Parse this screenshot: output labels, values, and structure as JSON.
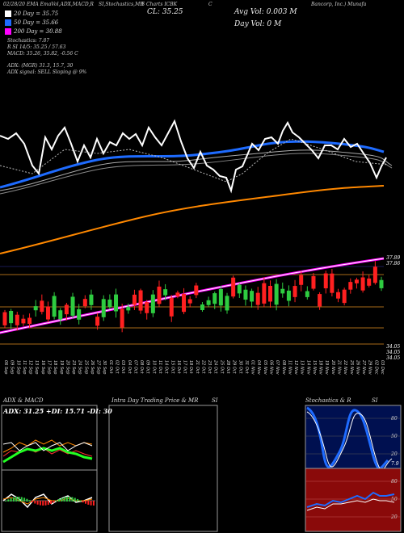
{
  "header": {
    "top_left": "02/28/20 EMA EmaVol,ADX,MACD,R",
    "top_mid": "SI,Stochastics,MR",
    "top_mid2": "S Charts ICBK",
    "top_right_code": "C",
    "top_company": "Bancorp, Inc.) Munafa",
    "top_site": "Munafa.com"
  },
  "price_label": "CL: 35.25",
  "avg_vol": "Avg Vol: 0.003  M",
  "day_vol": "Day Vol: 0  M",
  "legend": [
    {
      "label": "20  Day = 35.75",
      "color": "#ffffff"
    },
    {
      "label": "50  Day = 35.66",
      "color": "#1e6bff"
    },
    {
      "label": "200  Day = 30.88",
      "color": "#ff00ff"
    }
  ],
  "indicators": {
    "line1": "Stochastics: 7.87",
    "line2": "R                                   SI 14/5: 35.25 / 57.63",
    "line3": "MACD: 35.26, 35.82, -0.56  C",
    "line4": "ADX:                                    (MGR) 31.3,  15.7,  30",
    "line5": "ADX  signal: SELL  Sloping @ 9%"
  },
  "price_axis_labels": [
    "37.89",
    "37.86",
    "34.05",
    "34.05",
    "34.05"
  ],
  "chart_data": {
    "type": "candlestick",
    "title": "",
    "x_dates": [
      "06 Sep",
      "09 Sep",
      "10 Sep",
      "11 Sep",
      "12 Sep",
      "13 Sep",
      "16 Sep",
      "17 Sep",
      "18 Sep",
      "19 Sep",
      "20 Sep",
      "23 Sep",
      "24 Sep",
      "25 Sep",
      "26 Sep",
      "27 Sep",
      "30 Sep",
      "01 Oct",
      "02 Oct",
      "03 Oct",
      "04 Oct",
      "07 Oct",
      "08 Oct",
      "09 Oct",
      "10 Oct",
      "11 Oct",
      "14 Oct",
      "15 Oct",
      "16 Oct",
      "17 Oct",
      "18 Oct",
      "21 Oct",
      "22 Oct",
      "23 Oct",
      "24 Oct",
      "25 Oct",
      "28 Oct",
      "29 Oct",
      "30 Oct",
      "31 Oct",
      "01 Nov",
      "04 Nov",
      "05 Nov",
      "06 Nov",
      "07 Nov",
      "08 Nov",
      "11 Nov",
      "12 Nov",
      "13 Nov",
      "14 Nov",
      "15 Nov",
      "18 Nov",
      "19 Nov",
      "20 Nov",
      "21 Nov",
      "22 Nov",
      "25 Nov",
      "26 Nov",
      "27 Nov",
      "29 Nov",
      "02 Dec",
      "03 Dec"
    ],
    "candles_direction": [
      "red",
      "green",
      "red",
      "red",
      "red",
      "green",
      "red",
      "red",
      "green",
      "green",
      "red",
      "green",
      "green",
      "red",
      "green",
      "red",
      "green",
      "green",
      "green",
      "red",
      "green",
      "red",
      "red",
      "red",
      "green",
      "red",
      "green",
      "red",
      "red",
      "red",
      "red",
      "red",
      "green",
      "green",
      "green",
      "green",
      "green",
      "red",
      "green",
      "green",
      "green",
      "red",
      "red",
      "red",
      "green",
      "green",
      "green",
      "red",
      "red",
      "green",
      "red",
      "red",
      "red",
      "red",
      "red",
      "red",
      "red",
      "red",
      "red",
      "red",
      "red",
      "green"
    ],
    "ma_20_last": 35.75,
    "ma_50_last": 35.66,
    "ma_200_last": 30.88,
    "close": 35.25
  },
  "bottom_panels": {
    "adx_title": "ADX  & MACD",
    "adx_values": "ADX: 31.25  +DI: 15.71  -DI: 30",
    "intraday_title": "Intra  Day Trading Price  & MR",
    "intraday_si": "SI",
    "stoch_title": "Stochastics & R",
    "stoch_si": "SI",
    "stoch_axis": [
      "80",
      "50",
      "20"
    ],
    "rsi_axis": [
      "80",
      "50",
      "20"
    ],
    "stoch_low_label": "7.9"
  }
}
